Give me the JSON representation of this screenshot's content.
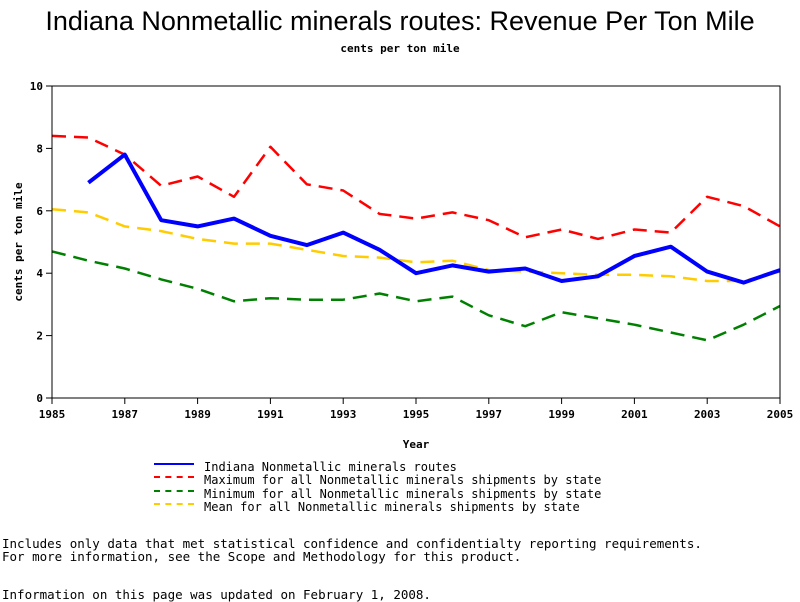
{
  "chart_data": {
    "type": "line",
    "title": "Indiana Nonmetallic minerals routes: Revenue Per Ton Mile",
    "subtitle": "cents per ton mile",
    "xlabel": "Year",
    "ylabel": "cents per ton mile",
    "xlim": [
      1985,
      2005
    ],
    "ylim": [
      0,
      10
    ],
    "x_ticks": [
      "1985",
      "1987",
      "1989",
      "1991",
      "1993",
      "1995",
      "1997",
      "1999",
      "2001",
      "2003",
      "2005"
    ],
    "y_ticks": [
      "0",
      "2",
      "4",
      "6",
      "8",
      "10"
    ],
    "series": [
      {
        "name": "Indiana Nonmetallic minerals routes",
        "color": "#0000ff",
        "dash": "solid",
        "x": [
          1986,
          1987,
          1988,
          1989,
          1990,
          1991,
          1992,
          1993,
          1994,
          1995,
          1996,
          1997,
          1998,
          1999,
          2000,
          2001,
          2002,
          2003,
          2004,
          2005
        ],
        "values": [
          6.9,
          7.8,
          5.7,
          5.5,
          5.75,
          5.2,
          4.9,
          5.3,
          4.75,
          4.0,
          4.25,
          4.05,
          4.15,
          3.75,
          3.9,
          4.55,
          4.85,
          4.05,
          3.7,
          4.1
        ]
      },
      {
        "name": "Maximum for all Nonmetallic minerals shipments by state",
        "color": "#ff0000",
        "dash": "dashed",
        "x": [
          1985,
          1986,
          1987,
          1988,
          1989,
          1990,
          1991,
          1992,
          1993,
          1994,
          1995,
          1996,
          1997,
          1998,
          1999,
          2000,
          2001,
          2002,
          2003,
          2004,
          2005
        ],
        "values": [
          8.4,
          8.35,
          7.8,
          6.8,
          7.1,
          6.45,
          8.05,
          6.85,
          6.65,
          5.9,
          5.75,
          5.95,
          5.7,
          5.15,
          5.4,
          5.1,
          5.4,
          5.3,
          6.45,
          6.15,
          5.5
        ]
      },
      {
        "name": "Minimum for all Nonmetallic minerals shipments by state",
        "color": "#008000",
        "dash": "dashed",
        "x": [
          1985,
          1986,
          1987,
          1988,
          1989,
          1990,
          1991,
          1992,
          1993,
          1994,
          1995,
          1996,
          1997,
          1998,
          1999,
          2000,
          2001,
          2002,
          2003,
          2004,
          2005
        ],
        "values": [
          4.7,
          4.4,
          4.15,
          3.8,
          3.5,
          3.1,
          3.2,
          3.15,
          3.15,
          3.35,
          3.1,
          3.25,
          2.65,
          2.3,
          2.75,
          2.55,
          2.35,
          2.1,
          1.85,
          2.35,
          2.95
        ]
      },
      {
        "name": "Mean for all Nonmetallic minerals shipments by state",
        "color": "#ffcc00",
        "dash": "dashed",
        "x": [
          1985,
          1986,
          1987,
          1988,
          1989,
          1990,
          1991,
          1992,
          1993,
          1994,
          1995,
          1996,
          1997,
          1998,
          1999,
          2000,
          2001,
          2002,
          2003,
          2004,
          2005
        ],
        "values": [
          6.05,
          5.95,
          5.5,
          5.35,
          5.1,
          4.95,
          4.95,
          4.75,
          4.55,
          4.5,
          4.35,
          4.4,
          4.1,
          4.05,
          4.0,
          3.95,
          3.95,
          3.9,
          3.75,
          3.75,
          4.05
        ]
      }
    ]
  },
  "notes": {
    "line1": "Includes only data that met statistical confidence and confidentialty reporting requirements.",
    "line2": "For more information, see the Scope and Methodology for this product.",
    "line3": "Information on this page was updated on February 1, 2008."
  }
}
